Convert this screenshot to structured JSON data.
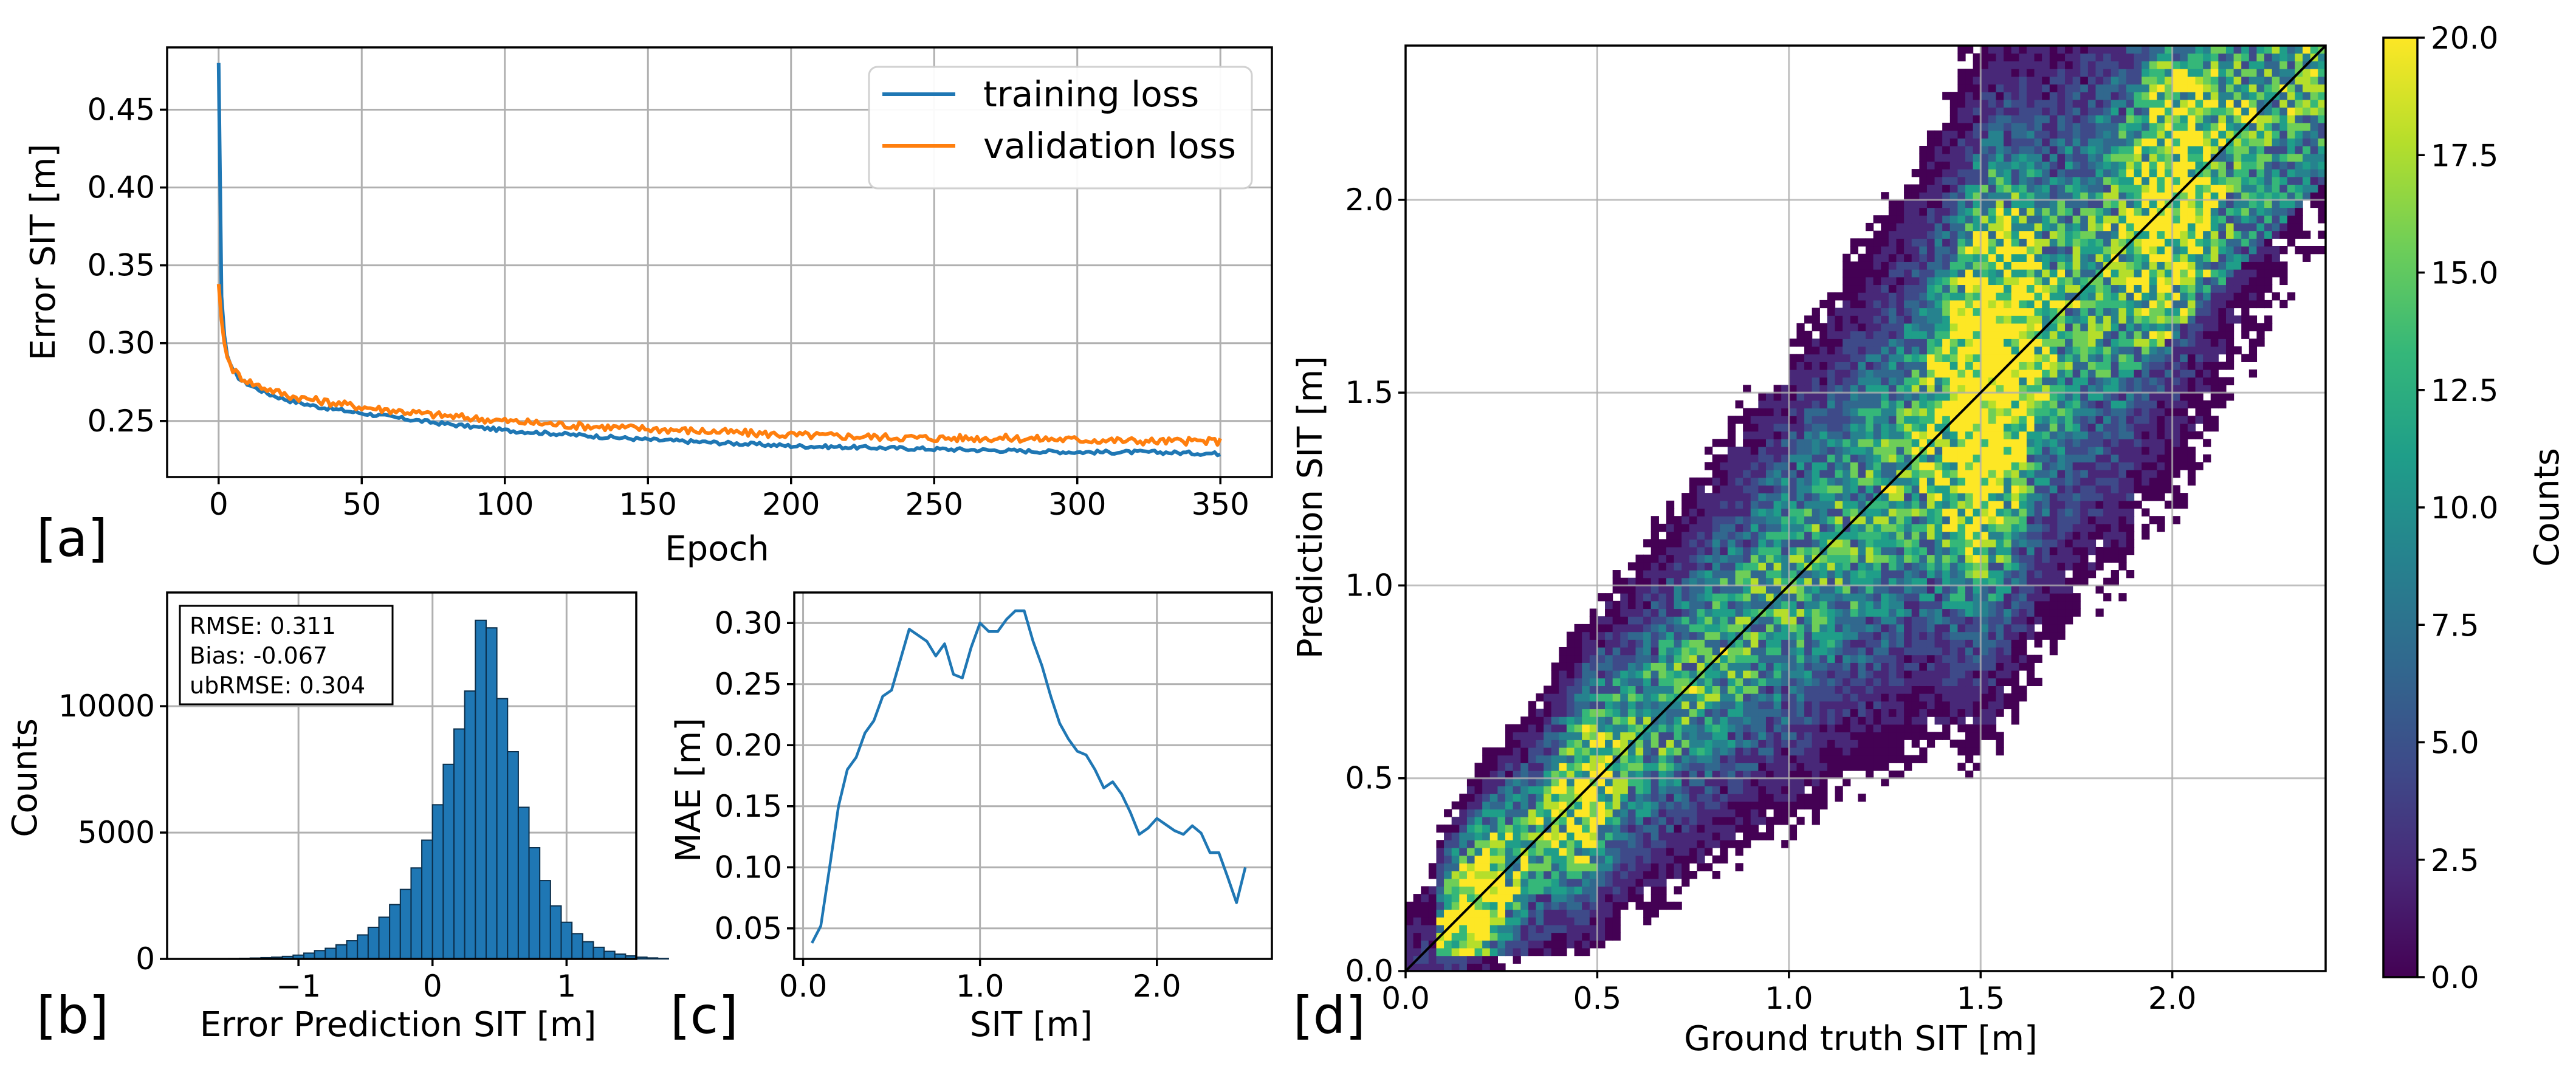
{
  "colors": {
    "training": "#1f77b4",
    "validation": "#ff7f0e",
    "hist_fill": "#1f77b4",
    "hist_edge": "#0b2e4a",
    "mae_line": "#1f77b4",
    "identity_line": "#000000",
    "colormap": [
      "#440154",
      "#482878",
      "#3e4a89",
      "#31688e",
      "#26828e",
      "#1f9e89",
      "#35b779",
      "#6ece58",
      "#b5de2b",
      "#fde725"
    ]
  },
  "chart_data": [
    {
      "id": "a",
      "type": "line",
      "panel_label": "[a]",
      "xlabel": "Epoch",
      "ylabel": "Error SIT [m]",
      "xlim": [
        -18,
        368
      ],
      "ylim": [
        0.214,
        0.49
      ],
      "xticks": [
        0,
        50,
        100,
        150,
        200,
        250,
        300,
        350
      ],
      "xtick_labels": [
        "0",
        "50",
        "100",
        "150",
        "200",
        "250",
        "300",
        "350"
      ],
      "yticks": [
        0.25,
        0.3,
        0.35,
        0.4,
        0.45
      ],
      "ytick_labels": [
        "0.25",
        "0.30",
        "0.35",
        "0.40",
        "0.45"
      ],
      "grid": true,
      "legend_position": "top-right",
      "series": [
        {
          "name": "training loss",
          "x": [
            0,
            1,
            2,
            3,
            5,
            8,
            12,
            18,
            25,
            35,
            50,
            75,
            100,
            125,
            150,
            175,
            200,
            225,
            250,
            275,
            300,
            325,
            350
          ],
          "y": [
            0.48,
            0.33,
            0.305,
            0.292,
            0.282,
            0.276,
            0.272,
            0.267,
            0.263,
            0.259,
            0.255,
            0.249,
            0.244,
            0.241,
            0.238,
            0.236,
            0.234,
            0.233,
            0.232,
            0.231,
            0.23,
            0.23,
            0.229
          ]
        },
        {
          "name": "validation loss",
          "x": [
            0,
            1,
            2,
            3,
            5,
            8,
            12,
            18,
            25,
            35,
            50,
            75,
            100,
            125,
            150,
            175,
            200,
            225,
            250,
            275,
            300,
            325,
            350
          ],
          "y": [
            0.338,
            0.315,
            0.3,
            0.291,
            0.283,
            0.278,
            0.274,
            0.27,
            0.266,
            0.263,
            0.259,
            0.254,
            0.25,
            0.247,
            0.245,
            0.243,
            0.241,
            0.24,
            0.239,
            0.239,
            0.238,
            0.237,
            0.237
          ]
        }
      ]
    },
    {
      "id": "b",
      "type": "bar",
      "panel_label": "[b]",
      "xlabel": "Error Prediction SIT [m]",
      "ylabel": "Counts",
      "xlim": [
        -1.98,
        1.52
      ],
      "ylim": [
        0,
        14500
      ],
      "xticks": [
        -1,
        0,
        1
      ],
      "xtick_labels": [
        "−1",
        "0",
        "1"
      ],
      "yticks": [
        0,
        5000,
        10000
      ],
      "ytick_labels": [
        "0",
        "5000",
        "10000"
      ],
      "grid": true,
      "bin_start": -1.6,
      "bin_width": 0.08,
      "values": [
        10,
        15,
        25,
        35,
        50,
        70,
        100,
        150,
        230,
        330,
        420,
        560,
        720,
        950,
        1250,
        1650,
        2150,
        2750,
        3600,
        4700,
        6100,
        7700,
        9100,
        10600,
        13400,
        13100,
        10300,
        8200,
        6000,
        4400,
        3100,
        2100,
        1450,
        1000,
        680,
        460,
        300,
        190,
        120,
        70,
        40,
        20
      ],
      "annotation_lines": [
        "RMSE: 0.311",
        "Bias: -0.067",
        "ubRMSE: 0.304"
      ]
    },
    {
      "id": "c",
      "type": "line",
      "panel_label": "[c]",
      "xlabel": "SIT [m]",
      "ylabel": "MAE [m]",
      "xlim": [
        -0.05,
        2.65
      ],
      "ylim": [
        0.025,
        0.325
      ],
      "xticks": [
        0.0,
        1.0,
        2.0
      ],
      "xtick_labels": [
        "0.0",
        "1.0",
        "2.0"
      ],
      "yticks": [
        0.05,
        0.1,
        0.15,
        0.2,
        0.25,
        0.3
      ],
      "ytick_labels": [
        "0.05",
        "0.10",
        "0.15",
        "0.20",
        "0.25",
        "0.30"
      ],
      "grid": true,
      "series": [
        {
          "x": [
            0.05,
            0.1,
            0.15,
            0.2,
            0.25,
            0.3,
            0.35,
            0.4,
            0.45,
            0.5,
            0.55,
            0.6,
            0.65,
            0.7,
            0.75,
            0.8,
            0.85,
            0.9,
            0.95,
            1.0,
            1.05,
            1.1,
            1.15,
            1.2,
            1.25,
            1.3,
            1.35,
            1.4,
            1.45,
            1.5,
            1.55,
            1.6,
            1.65,
            1.7,
            1.75,
            1.8,
            1.85,
            1.9,
            1.95,
            2.0,
            2.05,
            2.1,
            2.15,
            2.2,
            2.25,
            2.3,
            2.35,
            2.4,
            2.45,
            2.5
          ],
          "y": [
            0.038,
            0.052,
            0.1,
            0.15,
            0.18,
            0.19,
            0.21,
            0.22,
            0.24,
            0.245,
            0.27,
            0.295,
            0.29,
            0.285,
            0.273,
            0.283,
            0.258,
            0.255,
            0.28,
            0.3,
            0.293,
            0.293,
            0.303,
            0.31,
            0.31,
            0.285,
            0.265,
            0.24,
            0.218,
            0.205,
            0.195,
            0.192,
            0.18,
            0.165,
            0.17,
            0.16,
            0.145,
            0.127,
            0.132,
            0.14,
            0.135,
            0.13,
            0.127,
            0.134,
            0.128,
            0.112,
            0.112,
            0.092,
            0.071,
            0.1
          ]
        }
      ]
    },
    {
      "id": "d",
      "type": "heatmap",
      "panel_label": "[d]",
      "xlabel": "Ground truth SIT [m]",
      "ylabel": "Prediction SIT [m]",
      "xlim": [
        0,
        2.4
      ],
      "ylim": [
        0,
        2.4
      ],
      "xticks": [
        0.0,
        0.5,
        1.0,
        1.5,
        2.0
      ],
      "xtick_labels": [
        "0.0",
        "0.5",
        "1.0",
        "1.5",
        "2.0"
      ],
      "yticks": [
        0.0,
        0.5,
        1.0,
        1.5,
        2.0
      ],
      "ytick_labels": [
        "0.0",
        "0.5",
        "1.0",
        "1.5",
        "2.0"
      ],
      "grid": true,
      "identity_line": true,
      "bins": 120,
      "colorbar": {
        "label": "Counts",
        "range": [
          0,
          20
        ],
        "ticks": [
          0.0,
          2.5,
          5.0,
          7.5,
          10.0,
          12.5,
          15.0,
          17.5,
          20.0
        ],
        "tick_labels": [
          "0.0",
          "2.5",
          "5.0",
          "7.5",
          "10.0",
          "12.5",
          "15.0",
          "17.5",
          "20.0"
        ]
      }
    }
  ]
}
